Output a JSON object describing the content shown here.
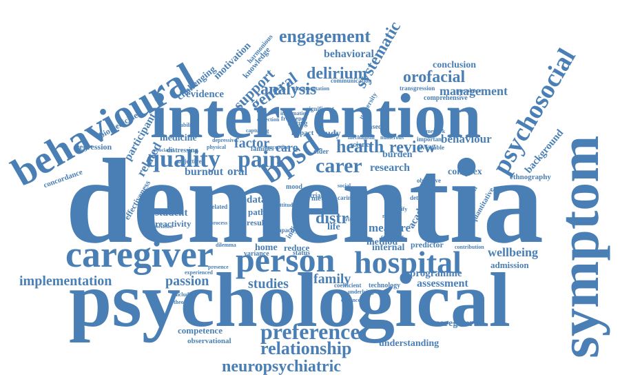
{
  "word_cloud": {
    "color": "#4a7fb5",
    "background": "#ffffff",
    "words": [
      "dementia",
      "psychological",
      "intervention",
      "symptom",
      "behavioural",
      "caregiver",
      "person",
      "hospital",
      "bpsd",
      "psychosocial",
      "engagement",
      "systematic",
      "quality",
      "pain",
      "carer",
      "health",
      "review",
      "analysis",
      "general",
      "support",
      "delirium",
      "orofacial",
      "management",
      "behavioral",
      "conclusion",
      "motivation",
      "challenging",
      "evidence",
      "participant",
      "related",
      "biomedicine",
      "regression",
      "concordance",
      "effectiveness",
      "medicine",
      "factor",
      "care",
      "study",
      "burnout",
      "oral",
      "background",
      "behaviour",
      "research",
      "burden",
      "complex",
      "ethnography",
      "data",
      "path",
      "result",
      "student",
      "reactivity",
      "distr",
      "life",
      "measure",
      "academic",
      "method",
      "family",
      "studies",
      "passion",
      "implementation",
      "home",
      "reduce",
      "wellbeing",
      "admission",
      "internal",
      "predictor",
      "programme",
      "assessment",
      "preference",
      "relationship",
      "neuropsychiatric",
      "competence",
      "observational",
      "caregivers",
      "understanding",
      "detection",
      "obsessive",
      "important",
      "avoidable",
      "dentition",
      "quantitative",
      "knowledge",
      "harmonious",
      "comprehensive",
      "transgression",
      "communication",
      "older",
      "science",
      "mechanism",
      "numerous",
      "distressing",
      "associated",
      "technology",
      "variance",
      "individual",
      "meta",
      "objective",
      "experienced",
      "coefficient",
      "contribution",
      "setting",
      "impact",
      "frequency",
      "information",
      "depressive",
      "physical",
      "including",
      "theory",
      "correlated",
      "families",
      "perception",
      "trial",
      "based",
      "university",
      "status",
      "mood",
      "social",
      "caring",
      "criterion",
      "consumer",
      "underlying",
      "enhance",
      "association",
      "presence",
      "documentation",
      "significant",
      "collection",
      "capturing",
      "framework",
      "prevalence",
      "capacity",
      "process",
      "attitude",
      "identify",
      "nursing",
      "dilemma",
      "ability",
      "guidance"
    ]
  }
}
